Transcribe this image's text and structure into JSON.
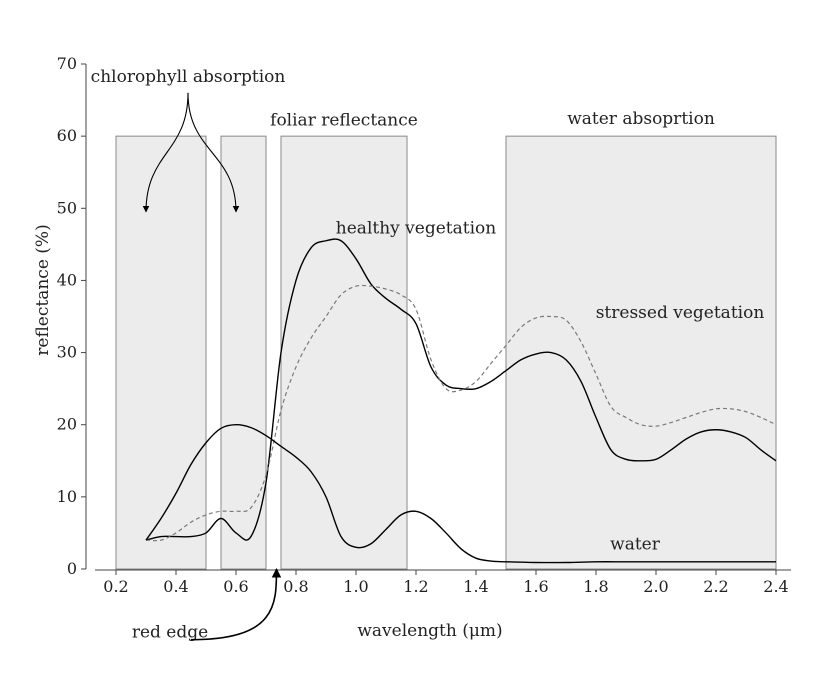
{
  "chart_data": {
    "type": "line",
    "title": "",
    "xlabel": "wavelength (μm)",
    "ylabel": "reflectance (%)",
    "xlim": [
      0.1,
      2.45
    ],
    "ylim": [
      0,
      70
    ],
    "x_ticks": [
      0.2,
      0.4,
      0.6,
      0.8,
      1.0,
      1.2,
      1.4,
      1.6,
      1.8,
      2.0,
      2.2,
      2.4
    ],
    "x_tick_labels": [
      "0.2",
      "0.4",
      "0.6",
      "0.8",
      "1.0",
      "1.2",
      "1.4",
      "1.6",
      "1.8",
      "2.0",
      "2.2",
      "2.4"
    ],
    "y_ticks": [
      0,
      10,
      20,
      30,
      40,
      50,
      60,
      70
    ],
    "y_tick_labels": [
      "0",
      "10",
      "20",
      "30",
      "40",
      "50",
      "60",
      "70"
    ],
    "grid": false,
    "legend": "none",
    "shaded_regions": [
      {
        "x0": 0.2,
        "x1": 0.5,
        "y": 60
      },
      {
        "x0": 0.55,
        "x1": 0.7,
        "y": 60
      },
      {
        "x0": 0.75,
        "x1": 1.17,
        "y": 60
      },
      {
        "x0": 1.5,
        "x1": 2.4,
        "y": 60
      }
    ],
    "series": [
      {
        "name": "healthy vegetation",
        "style": "solid",
        "color": "#000000",
        "x": [
          0.3,
          0.35,
          0.4,
          0.45,
          0.5,
          0.55,
          0.6,
          0.65,
          0.7,
          0.75,
          0.8,
          0.85,
          0.9,
          0.95,
          1.0,
          1.05,
          1.1,
          1.15,
          1.2,
          1.25,
          1.3,
          1.35,
          1.4,
          1.45,
          1.5,
          1.55,
          1.6,
          1.65,
          1.7,
          1.75,
          1.8,
          1.85,
          1.9,
          1.95,
          2.0,
          2.05,
          2.1,
          2.15,
          2.2,
          2.25,
          2.3,
          2.35,
          2.4
        ],
        "y": [
          4,
          4.5,
          4.5,
          4.5,
          5,
          7,
          5,
          4.5,
          12,
          30,
          40,
          44.5,
          45.5,
          45.5,
          43,
          39.5,
          37.5,
          36,
          34,
          28,
          25.5,
          25,
          25,
          26,
          27.5,
          29,
          29.8,
          30,
          29,
          26,
          21,
          16.5,
          15.2,
          15,
          15.2,
          16.5,
          18,
          19,
          19.3,
          19,
          18.2,
          16.5,
          15
        ]
      },
      {
        "name": "stressed vegetation",
        "style": "dashed",
        "color": "#7a7a7a",
        "x": [
          0.3,
          0.35,
          0.4,
          0.45,
          0.5,
          0.55,
          0.6,
          0.65,
          0.7,
          0.75,
          0.8,
          0.85,
          0.9,
          0.95,
          1.0,
          1.05,
          1.1,
          1.15,
          1.2,
          1.25,
          1.3,
          1.35,
          1.4,
          1.45,
          1.5,
          1.55,
          1.6,
          1.65,
          1.7,
          1.75,
          1.8,
          1.85,
          1.9,
          1.95,
          2.0,
          2.05,
          2.1,
          2.15,
          2.2,
          2.25,
          2.3,
          2.35,
          2.4
        ],
        "y": [
          4,
          4,
          5,
          6.5,
          7.5,
          8,
          8,
          8.5,
          13,
          22,
          28,
          32,
          35,
          38,
          39.2,
          39.2,
          38.8,
          38,
          36,
          29,
          25,
          24.8,
          26,
          28.5,
          31,
          33.5,
          34.8,
          35,
          34.5,
          31.5,
          27,
          22.5,
          21,
          20,
          19.8,
          20.3,
          21,
          21.7,
          22.2,
          22.2,
          21.8,
          21,
          20
        ]
      },
      {
        "name": "water",
        "style": "solid",
        "color": "#000000",
        "x": [
          0.3,
          0.35,
          0.4,
          0.45,
          0.5,
          0.55,
          0.6,
          0.65,
          0.7,
          0.75,
          0.8,
          0.85,
          0.9,
          0.95,
          1.0,
          1.05,
          1.1,
          1.15,
          1.2,
          1.25,
          1.3,
          1.35,
          1.4,
          1.45,
          1.5,
          1.6,
          1.7,
          1.8,
          1.9,
          2.0,
          2.1,
          2.2,
          2.3,
          2.4
        ],
        "y": [
          4,
          7,
          10.5,
          14.5,
          17.5,
          19.5,
          20,
          19.6,
          18.5,
          17,
          15.5,
          13.5,
          10,
          4.5,
          3,
          3.5,
          5.5,
          7.5,
          8,
          7,
          5,
          2.8,
          1.5,
          1.1,
          1.0,
          0.9,
          0.9,
          1.0,
          1.0,
          1.0,
          1.0,
          1.0,
          1.0,
          1.0
        ]
      }
    ],
    "annotations": [
      {
        "text": "chlorophyll absorption",
        "x": 0.44,
        "y": 67.5
      },
      {
        "text": "foliar reflectance",
        "x": 0.96,
        "y": 61.5
      },
      {
        "text": "water absoprtion",
        "x": 1.95,
        "y": 61.7
      },
      {
        "text": "healthy vegetation",
        "x": 1.2,
        "y": 46.5
      },
      {
        "text": "stressed vegetation",
        "x": 2.08,
        "y": 34.8
      },
      {
        "text": "water",
        "x": 1.93,
        "y": 2.7
      },
      {
        "text": "red edge",
        "x": 0.38,
        "y": -9.5
      }
    ],
    "arrows": [
      {
        "from": [
          0.44,
          66
        ],
        "to": [
          0.3,
          49.5
        ]
      },
      {
        "from": [
          0.44,
          66
        ],
        "to": [
          0.6,
          49.5
        ]
      },
      {
        "from": [
          0.45,
          -9.8
        ],
        "to": [
          0.735,
          0
        ]
      }
    ]
  }
}
